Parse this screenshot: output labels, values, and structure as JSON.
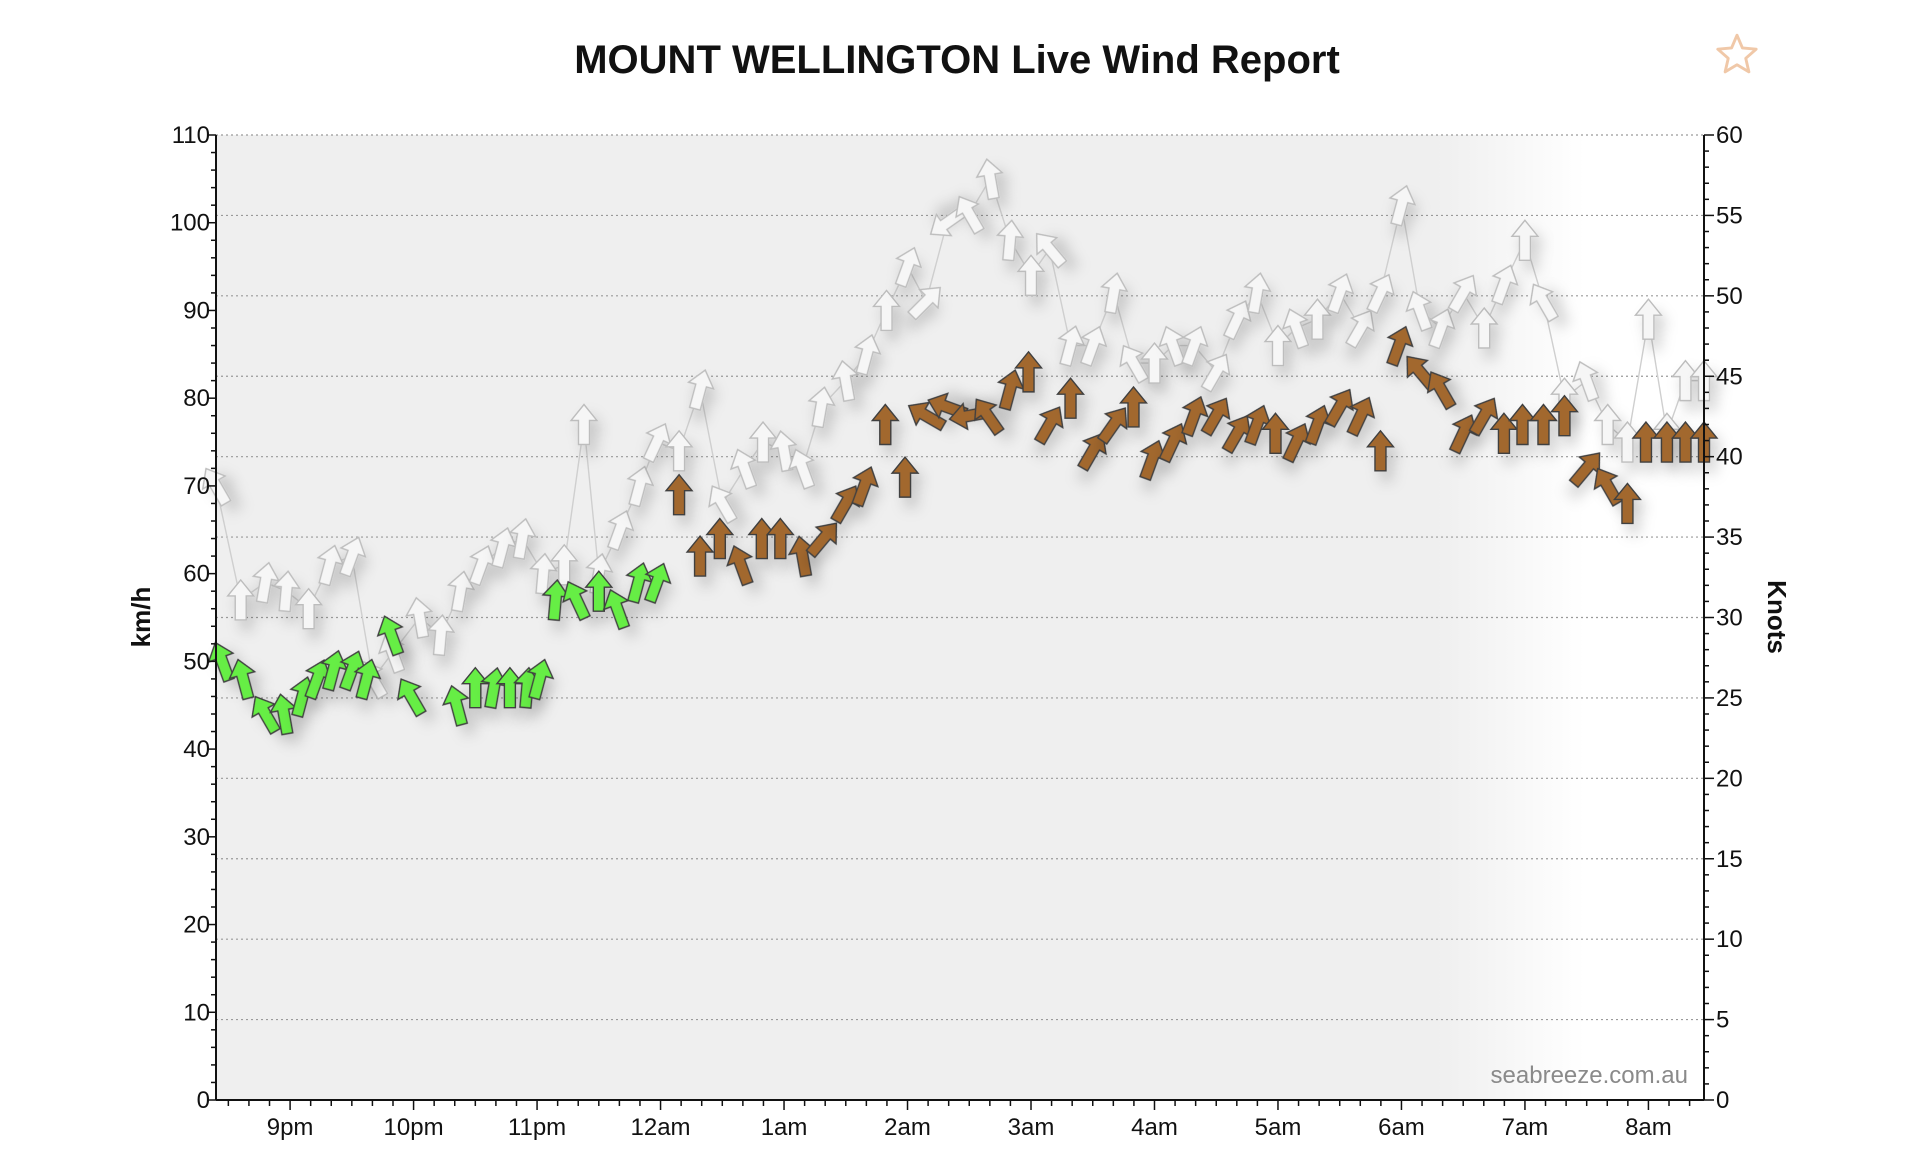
{
  "favorite_icon": "star-outline-icon",
  "colors": {
    "gust": "#f6f6f6",
    "wind_low": "#66ee44",
    "wind_high": "#a2682e",
    "wind_high_threshold_kmh": 60
  },
  "chart_data": {
    "type": "scatter",
    "title": "MOUNT WELLINGTON Live Wind Report",
    "xlabel": "",
    "ylabel": "km/h",
    "ylabel_right": "Knots",
    "credit": "seabreeze.com.au",
    "x_unit": "hours after 8:00pm",
    "xlim": [
      0.4,
      12.45
    ],
    "ylim": [
      0,
      110
    ],
    "y_ticks": [
      0,
      10,
      20,
      30,
      40,
      50,
      60,
      70,
      80,
      90,
      100,
      110
    ],
    "y2lim": [
      0,
      60
    ],
    "y2_ticks": [
      0,
      5,
      10,
      15,
      20,
      25,
      30,
      35,
      40,
      45,
      50,
      55,
      60
    ],
    "x_ticks": [
      {
        "x": 1,
        "label": "9pm"
      },
      {
        "x": 2,
        "label": "10pm"
      },
      {
        "x": 3,
        "label": "11pm"
      },
      {
        "x": 4,
        "label": "12am"
      },
      {
        "x": 5,
        "label": "1am"
      },
      {
        "x": 6,
        "label": "2am"
      },
      {
        "x": 7,
        "label": "3am"
      },
      {
        "x": 8,
        "label": "4am"
      },
      {
        "x": 9,
        "label": "5am"
      },
      {
        "x": 10,
        "label": "6am"
      },
      {
        "x": 11,
        "label": "7am"
      },
      {
        "x": 12,
        "label": "8am"
      }
    ],
    "grid": true,
    "shading": "night",
    "series": [
      {
        "name": "Gust",
        "x": [
          0.4,
          0.6,
          0.8,
          0.97,
          1.15,
          1.32,
          1.5,
          1.67,
          1.83,
          2.05,
          2.22,
          2.38,
          2.55,
          2.72,
          2.88,
          3.05,
          3.22,
          3.38,
          3.5,
          3.67,
          3.83,
          3.97,
          4.15,
          4.32,
          4.5,
          4.68,
          4.83,
          5.0,
          5.15,
          5.3,
          5.5,
          5.67,
          5.83,
          6.0,
          6.15,
          6.32,
          6.5,
          6.67,
          6.83,
          7.0,
          7.15,
          7.32,
          7.5,
          7.67,
          7.83,
          8.0,
          8.15,
          8.32,
          8.5,
          8.67,
          8.83,
          9.0,
          9.15,
          9.32,
          9.5,
          9.67,
          9.83,
          10.0,
          10.15,
          10.32,
          10.5,
          10.67,
          10.83,
          11.0,
          11.15,
          11.32,
          11.5,
          11.67,
          11.83,
          12.0,
          12.15,
          12.3,
          12.45
        ],
        "gust_kmh": [
          70,
          57,
          59,
          58,
          56,
          61,
          62,
          48,
          51,
          55,
          53,
          58,
          61,
          63,
          64,
          60,
          61,
          77,
          60,
          65,
          70,
          75,
          74,
          81,
          68,
          72,
          75,
          74,
          72,
          79,
          82,
          85,
          90,
          95,
          91,
          100,
          101,
          105,
          98,
          94,
          97,
          86,
          86,
          92,
          84,
          84,
          86,
          86,
          83,
          89,
          92,
          86,
          88,
          89,
          92,
          88,
          92,
          102,
          90,
          88,
          92,
          88,
          93,
          98,
          91,
          80,
          82,
          77,
          75,
          89,
          76,
          82,
          82
        ],
        "dir_deg": [
          330,
          0,
          10,
          5,
          0,
          15,
          20,
          330,
          340,
          350,
          5,
          10,
          20,
          15,
          10,
          5,
          0,
          0,
          10,
          20,
          15,
          25,
          0,
          15,
          330,
          340,
          0,
          350,
          340,
          10,
          350,
          15,
          0,
          20,
          45,
          235,
          330,
          350,
          5,
          0,
          320,
          15,
          20,
          10,
          330,
          0,
          340,
          20,
          30,
          25,
          10,
          0,
          340,
          0,
          20,
          30,
          25,
          15,
          340,
          20,
          30,
          0,
          20,
          0,
          330,
          0,
          340,
          0,
          0,
          0,
          0,
          0,
          0
        ]
      },
      {
        "name": "Wind",
        "x": [
          0.45,
          0.62,
          0.8,
          0.95,
          1.1,
          1.22,
          1.35,
          1.5,
          1.62,
          1.82,
          1.98,
          2.35,
          2.5,
          2.65,
          2.78,
          2.92,
          3.02,
          3.15,
          3.32,
          3.5,
          3.65,
          3.82,
          3.97,
          4.15,
          4.32,
          4.48,
          4.65,
          4.82,
          4.97,
          5.15,
          5.32,
          5.5,
          5.65,
          5.82,
          5.98,
          6.15,
          6.32,
          6.5,
          6.65,
          6.83,
          6.98,
          7.15,
          7.32,
          7.5,
          7.67,
          7.83,
          7.98,
          8.15,
          8.32,
          8.5,
          8.67,
          8.83,
          8.98,
          9.15,
          9.32,
          9.5,
          9.67,
          9.83,
          9.98,
          10.15,
          10.32,
          10.5,
          10.67,
          10.83,
          10.98,
          11.15,
          11.32,
          11.5,
          11.67,
          11.83,
          11.98,
          12.15,
          12.3,
          12.45
        ],
        "wind_kmh": [
          50,
          48,
          44,
          44,
          46,
          48,
          49,
          49,
          48,
          53,
          46,
          45,
          47,
          47,
          47,
          47,
          48,
          57,
          57,
          58,
          56,
          59,
          59,
          69,
          62,
          64,
          61,
          64,
          64,
          62,
          64,
          68,
          70,
          77,
          71,
          78,
          79,
          78,
          78,
          81,
          83,
          77,
          80,
          74,
          77,
          79,
          73,
          75,
          78,
          78,
          76,
          77,
          76,
          75,
          77,
          79,
          78,
          74,
          86,
          83,
          81,
          76,
          78,
          76,
          77,
          77,
          78,
          72,
          70,
          68,
          75,
          75,
          75,
          75
        ],
        "dir_deg": [
          340,
          345,
          330,
          350,
          15,
          20,
          15,
          20,
          15,
          340,
          330,
          345,
          0,
          10,
          0,
          5,
          15,
          5,
          335,
          0,
          340,
          15,
          20,
          0,
          0,
          0,
          340,
          0,
          0,
          350,
          40,
          30,
          20,
          0,
          0,
          300,
          290,
          260,
          325,
          15,
          0,
          30,
          0,
          30,
          35,
          0,
          20,
          25,
          20,
          30,
          30,
          20,
          0,
          25,
          20,
          30,
          25,
          0,
          20,
          320,
          330,
          25,
          30,
          0,
          0,
          0,
          0,
          40,
          330,
          0,
          0,
          0,
          0,
          0
        ]
      }
    ]
  }
}
